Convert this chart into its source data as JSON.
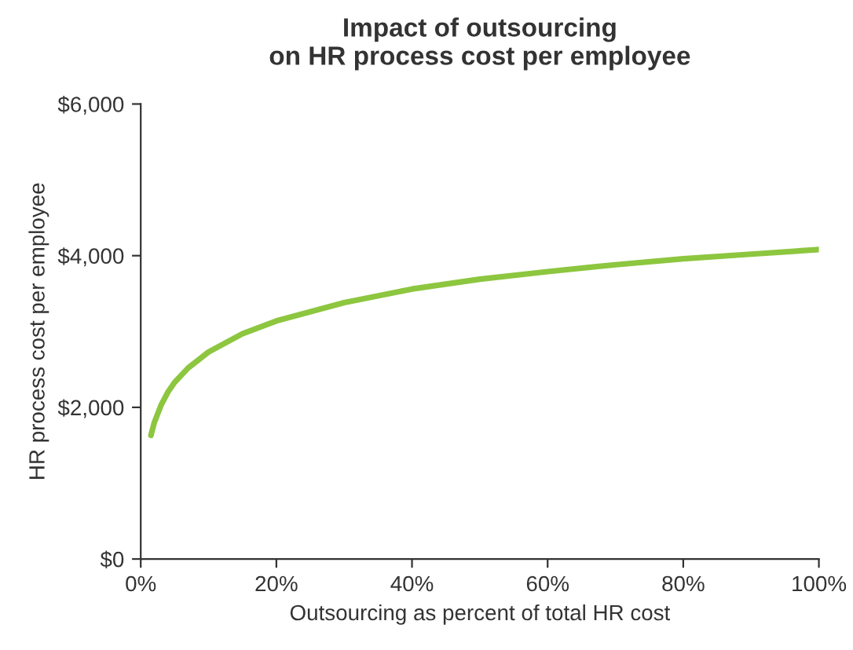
{
  "chart_data": {
    "type": "line",
    "title": "Impact of outsourcing\non HR process cost per employee",
    "xlabel": "Outsourcing as percent of total HR cost",
    "ylabel": "HR process cost per employee",
    "x": [
      1.5,
      2,
      3,
      4,
      5,
      7,
      10,
      15,
      20,
      30,
      40,
      50,
      60,
      70,
      80,
      90,
      100
    ],
    "series": [
      {
        "color": "#8dc63f",
        "values": [
          1630,
          1800,
          2030,
          2200,
          2330,
          2520,
          2730,
          2970,
          3140,
          3380,
          3560,
          3690,
          3790,
          3880,
          3960,
          4020,
          4080
        ]
      }
    ],
    "xlim": [
      0,
      100
    ],
    "xticks": [
      {
        "value": 0,
        "label": "0%"
      },
      {
        "value": 20,
        "label": "20%"
      },
      {
        "value": 40,
        "label": "40%"
      },
      {
        "value": 60,
        "label": "60%"
      },
      {
        "value": 80,
        "label": "80%"
      },
      {
        "value": 100,
        "label": "100%"
      }
    ],
    "ylim": [
      0,
      6000
    ],
    "yticks": [
      {
        "value": 0,
        "label": "$0"
      },
      {
        "value": 2000,
        "label": "$2,000"
      },
      {
        "value": 4000,
        "label": "$4,000"
      },
      {
        "value": 6000,
        "label": "$6,000"
      }
    ],
    "grid": false,
    "legend": false,
    "marker": "none",
    "line_style": "solid"
  }
}
